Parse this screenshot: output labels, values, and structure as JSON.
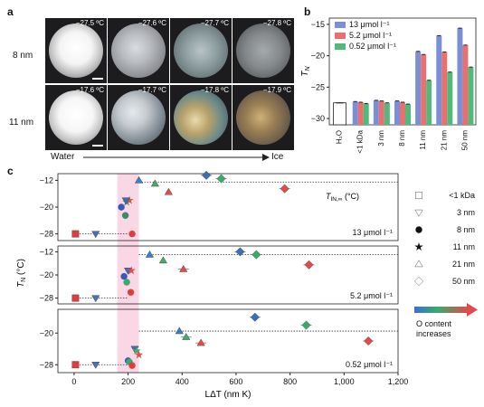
{
  "panel_a": {
    "letter": "a",
    "rows": [
      {
        "label": "8 nm",
        "temps": [
          "−27.5 ºC",
          "−27.6 ºC",
          "−27.7 ºC",
          "−27.8 ºC"
        ]
      },
      {
        "label": "11 nm",
        "temps": [
          "−17.6 ºC",
          "−17.7 ºC",
          "−17.8 ºC",
          "−17.9 ºC"
        ]
      }
    ],
    "from_label": "Water",
    "to_label": "Ice"
  },
  "panel_b": {
    "letter": "b",
    "chart_data": {
      "type": "bar",
      "categories": [
        "H₂O",
        "<1 kDa",
        "3 nm",
        "8 nm",
        "11 nm",
        "21 nm",
        "50 nm"
      ],
      "series": [
        {
          "name": "13 μmol l⁻¹",
          "color": "#7b8fd6",
          "values": [
            null,
            -27.3,
            -27.1,
            -27.2,
            -19.3,
            -16.8,
            -15.6
          ]
        },
        {
          "name": "5.2 μmol l⁻¹",
          "color": "#e8706e",
          "values": [
            null,
            -27.4,
            -27.2,
            -27.4,
            -19.8,
            -19.4,
            -18.3
          ]
        },
        {
          "name": "0.52 μmol l⁻¹",
          "color": "#52b97a",
          "values": [
            null,
            -27.6,
            -27.5,
            -27.7,
            -23.9,
            -22.6,
            -21.8
          ]
        }
      ],
      "single": {
        "category": "H₂O",
        "value": -27.5,
        "color": "#ffffff"
      },
      "ylabel": "T_N",
      "ylabel_main": "T",
      "ylabel_sub": "N",
      "ylim": [
        -31,
        -14
      ],
      "yticks": [
        -15,
        -20,
        -25,
        -30
      ]
    }
  },
  "panel_c": {
    "letter": "c",
    "chart_data": [
      {
        "type": "scatter",
        "concentration": "13 μmol l⁻¹",
        "ylim": [
          -30,
          -10
        ],
        "yticks": [
          -12,
          -20,
          -28
        ],
        "baseline": -28,
        "plateau": -12.5,
        "plateau_label": "T_IN,∞ (°C)",
        "plateau_main": "T",
        "plateau_sub": "IN,∞",
        "plateau_unit": " (°C)",
        "points": [
          {
            "sample": "<1 kDa",
            "x": 5,
            "y": -28,
            "color": "#e03c3c"
          },
          {
            "sample": "3 nm",
            "x": 80,
            "y": -28,
            "color": "#4a6fb5"
          },
          {
            "sample": "8 nm",
            "x": 175,
            "y": -20,
            "color": "#3a58b8"
          },
          {
            "sample": "8 nm",
            "x": 190,
            "y": -22.5,
            "color": "#3a8a6a"
          },
          {
            "sample": "8 nm",
            "x": 215,
            "y": -28,
            "color": "#e03c3c"
          },
          {
            "sample": "11 nm",
            "x": 195,
            "y": -18.5,
            "color": "#4a9a6a"
          },
          {
            "sample": "11 nm",
            "x": 205,
            "y": -18,
            "color": "#c86040"
          },
          {
            "sample": "3 nm",
            "x": 192,
            "y": -18,
            "color": "#3a6fb5"
          },
          {
            "sample": "21 nm",
            "x": 240,
            "y": -12,
            "color": "#3a7fc8"
          },
          {
            "sample": "21 nm",
            "x": 300,
            "y": -13,
            "color": "#4aaa6a"
          },
          {
            "sample": "21 nm",
            "x": 350,
            "y": -15.5,
            "color": "#e04c4c"
          },
          {
            "sample": "50 nm",
            "x": 490,
            "y": -10.5,
            "color": "#3a6fb5"
          },
          {
            "sample": "50 nm",
            "x": 545,
            "y": -11.5,
            "color": "#3aaa6a"
          },
          {
            "sample": "50 nm",
            "x": 780,
            "y": -14.5,
            "color": "#e04c4c"
          }
        ]
      },
      {
        "type": "scatter",
        "concentration": "5.2 μmol l⁻¹",
        "ylim": [
          -30,
          -10
        ],
        "yticks": [
          -12,
          -20,
          -28
        ],
        "baseline": -28,
        "plateau": -13,
        "points": [
          {
            "sample": "<1 kDa",
            "x": 5,
            "y": -28,
            "color": "#e03c3c"
          },
          {
            "sample": "3 nm",
            "x": 80,
            "y": -28,
            "color": "#4a6fb5"
          },
          {
            "sample": "8 nm",
            "x": 185,
            "y": -20.5,
            "color": "#3a58b8"
          },
          {
            "sample": "8 nm",
            "x": 195,
            "y": -22.5,
            "color": "#3aaa6a"
          },
          {
            "sample": "8 nm",
            "x": 210,
            "y": -26,
            "color": "#e03c3c"
          },
          {
            "sample": "3 nm",
            "x": 200,
            "y": -18.5,
            "color": "#3a6fb5"
          },
          {
            "sample": "11 nm",
            "x": 212,
            "y": -18.5,
            "color": "#e04c4c"
          },
          {
            "sample": "21 nm",
            "x": 280,
            "y": -13,
            "color": "#3a7fc8"
          },
          {
            "sample": "21 nm",
            "x": 330,
            "y": -15,
            "color": "#4aaa6a"
          },
          {
            "sample": "21 nm",
            "x": 405,
            "y": -18,
            "color": "#e04c4c"
          },
          {
            "sample": "50 nm",
            "x": 615,
            "y": -12,
            "color": "#3a6fb5"
          },
          {
            "sample": "50 nm",
            "x": 675,
            "y": -13,
            "color": "#3aaa6a"
          },
          {
            "sample": "50 nm",
            "x": 870,
            "y": -16.5,
            "color": "#e04c4c"
          }
        ]
      },
      {
        "type": "scatter",
        "concentration": "0.52 μmol l⁻¹",
        "ylim": [
          -30,
          -14
        ],
        "yticks": [
          -20,
          -28
        ],
        "baseline": -28,
        "plateau": -19.5,
        "points": [
          {
            "sample": "<1 kDa",
            "x": 5,
            "y": -28,
            "color": "#e03c3c"
          },
          {
            "sample": "3 nm",
            "x": 80,
            "y": -28,
            "color": "#4a6fb5"
          },
          {
            "sample": "8 nm",
            "x": 200,
            "y": -27,
            "color": "#3a58b8"
          },
          {
            "sample": "8 nm",
            "x": 205,
            "y": -27.3,
            "color": "#3aaa6a"
          },
          {
            "sample": "8 nm",
            "x": 215,
            "y": -28.2,
            "color": "#e03c3c"
          },
          {
            "sample": "3 nm",
            "x": 225,
            "y": -24,
            "color": "#3a6fb5"
          },
          {
            "sample": "11 nm",
            "x": 232,
            "y": -24.5,
            "color": "#4aaa6a"
          },
          {
            "sample": "11 nm",
            "x": 240,
            "y": -25.5,
            "color": "#e04c4c"
          },
          {
            "sample": "21 nm",
            "x": 390,
            "y": -19.5,
            "color": "#3a7fc8"
          },
          {
            "sample": "21 nm",
            "x": 415,
            "y": -21,
            "color": "#4aaa6a"
          },
          {
            "sample": "21 nm",
            "x": 470,
            "y": -22.5,
            "color": "#e04c4c"
          },
          {
            "sample": "50 nm",
            "x": 670,
            "y": -16,
            "color": "#3a6fb5"
          },
          {
            "sample": "50 nm",
            "x": 860,
            "y": -18,
            "color": "#3aaa6a"
          },
          {
            "sample": "50 nm",
            "x": 1090,
            "y": -22,
            "color": "#e04c4c"
          }
        ]
      }
    ],
    "xlabel": "LΔT (nm K)",
    "xticks": [
      0,
      200,
      400,
      600,
      800,
      "1,000",
      "1,200"
    ],
    "xlim": [
      -60,
      1200
    ],
    "ylabel_main": "T",
    "ylabel_sub": "N",
    "ylabel_unit": " (°C)",
    "legend": [
      {
        "label": "<1 kDa",
        "icon": "square-icon"
      },
      {
        "label": "3 nm",
        "icon": "triangle-down-icon"
      },
      {
        "label": "8 nm",
        "icon": "circle-icon"
      },
      {
        "label": "11 nm",
        "icon": "star-icon"
      },
      {
        "label": "21 nm",
        "icon": "triangle-up-icon"
      },
      {
        "label": "50 nm",
        "icon": "diamond-icon"
      }
    ],
    "gradient_label_1": "O content",
    "gradient_label_2": "increases"
  }
}
